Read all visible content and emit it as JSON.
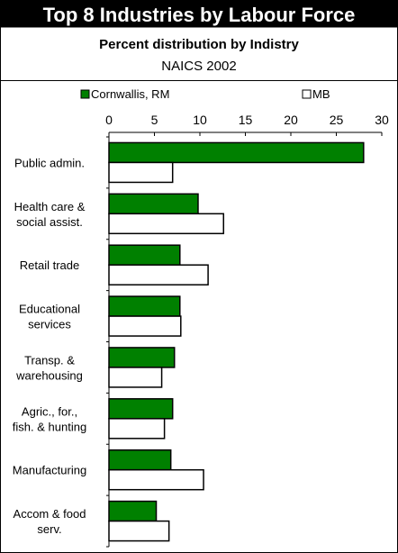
{
  "chart_data": {
    "type": "bar",
    "orientation": "horizontal",
    "title": "Top 8 Industries by Labour Force",
    "subtitle": "Percent distribution by Indistry",
    "subtitle2": "NAICS 2002",
    "xlim": [
      0,
      30
    ],
    "xticks": [
      "0",
      "5",
      "10",
      "15",
      "20",
      "25",
      "30"
    ],
    "legend_position": "top",
    "categories": [
      [
        "Public admin."
      ],
      [
        "Health care &",
        "social assist."
      ],
      [
        "Retail trade"
      ],
      [
        "Educational",
        "services"
      ],
      [
        "Transp. &",
        "warehousing"
      ],
      [
        "Agric., for.,",
        "fish. & hunting"
      ],
      [
        "Manufacturing"
      ],
      [
        "Accom & food",
        "serv."
      ]
    ],
    "series": [
      {
        "name": "Cornwallis, RM",
        "color": "#008000",
        "values": [
          28.0,
          9.8,
          7.8,
          7.8,
          7.2,
          7.0,
          6.8,
          5.2
        ]
      },
      {
        "name": "MB",
        "color": "#ffffff",
        "values": [
          7.0,
          12.6,
          10.9,
          7.9,
          5.8,
          6.1,
          10.4,
          6.6
        ]
      }
    ]
  }
}
